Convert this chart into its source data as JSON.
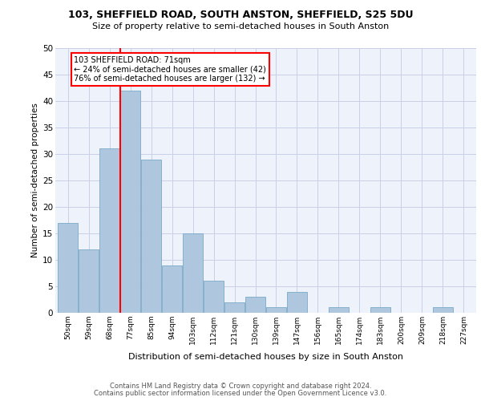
{
  "title1": "103, SHEFFIELD ROAD, SOUTH ANSTON, SHEFFIELD, S25 5DU",
  "title2": "Size of property relative to semi-detached houses in South Anston",
  "xlabel": "Distribution of semi-detached houses by size in South Anston",
  "ylabel": "Number of semi-detached properties",
  "categories": [
    "50sqm",
    "59sqm",
    "68sqm",
    "77sqm",
    "85sqm",
    "94sqm",
    "103sqm",
    "112sqm",
    "121sqm",
    "130sqm",
    "139sqm",
    "147sqm",
    "156sqm",
    "165sqm",
    "174sqm",
    "183sqm",
    "200sqm",
    "209sqm",
    "218sqm",
    "227sqm"
  ],
  "values": [
    17,
    12,
    31,
    42,
    29,
    9,
    15,
    6,
    2,
    3,
    1,
    4,
    0,
    1,
    0,
    1,
    0,
    0,
    1,
    0
  ],
  "bar_color": "#aec6de",
  "bar_edge_color": "#7aaac8",
  "red_line_index": 2.5,
  "annotation_title": "103 SHEFFIELD ROAD: 71sqm",
  "annotation_line1": "← 24% of semi-detached houses are smaller (42)",
  "annotation_line2": "76% of semi-detached houses are larger (132) →",
  "footer1": "Contains HM Land Registry data © Crown copyright and database right 2024.",
  "footer2": "Contains public sector information licensed under the Open Government Licence v3.0.",
  "ylim": [
    0,
    50
  ],
  "yticks": [
    0,
    5,
    10,
    15,
    20,
    25,
    30,
    35,
    40,
    45,
    50
  ],
  "bg_color": "#eef2fa",
  "grid_color": "#c8cfe8"
}
